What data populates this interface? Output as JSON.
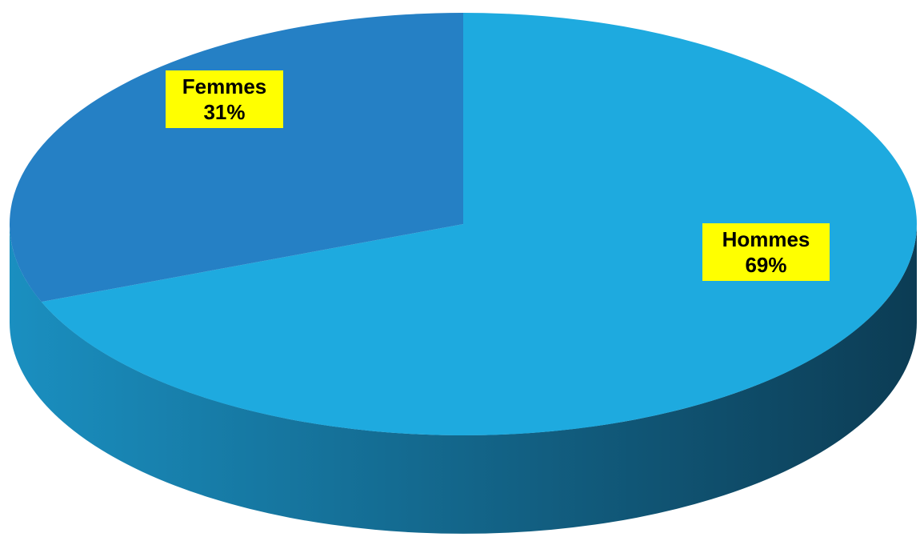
{
  "chart_data": {
    "type": "pie",
    "style": "3d",
    "title": "",
    "slices": [
      {
        "label": "Hommes",
        "value": 69,
        "value_label": "69%",
        "color": "#1eaadf",
        "side_color_light": "#1a8fc0",
        "side_color_dark": "#0c3c54"
      },
      {
        "label": "Femmes",
        "value": 31,
        "value_label": "31%",
        "color": "#2580c5",
        "side_color_light": "#1d6ea8",
        "side_color_dark": "#134a70"
      }
    ],
    "legend": "none",
    "label_background": "#ffff00"
  }
}
